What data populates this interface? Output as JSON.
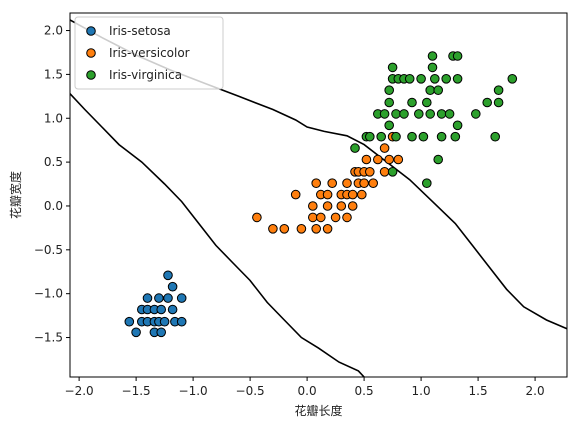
{
  "chart_data": {
    "type": "scatter",
    "xlabel": "花瓣长度",
    "ylabel": "花瓣宽度",
    "xlim": [
      -2.08,
      2.28
    ],
    "ylim": [
      -1.95,
      2.2
    ],
    "xticks": [
      -2.0,
      -1.5,
      -1.0,
      -0.5,
      0.0,
      0.5,
      1.0,
      1.5,
      2.0
    ],
    "yticks": [
      -1.5,
      -1.0,
      -0.5,
      0.0,
      0.5,
      1.0,
      1.5,
      2.0
    ],
    "xtick_labels": [
      "−2.0",
      "−1.5",
      "−1.0",
      "−0.5",
      "0.0",
      "0.5",
      "1.0",
      "1.5",
      "2.0"
    ],
    "ytick_labels": [
      "−1.5",
      "−1.0",
      "−0.5",
      "0.0",
      "0.5",
      "1.0",
      "1.5",
      "2.0"
    ],
    "legend_position": "top-left",
    "grid": false,
    "series": [
      {
        "name": "Iris-setosa",
        "color": "#1f77b4",
        "points": [
          [
            -1.56,
            -1.32
          ],
          [
            -1.5,
            -1.44
          ],
          [
            -1.45,
            -1.32
          ],
          [
            -1.45,
            -1.18
          ],
          [
            -1.4,
            -1.32
          ],
          [
            -1.4,
            -1.18
          ],
          [
            -1.4,
            -1.05
          ],
          [
            -1.34,
            -1.32
          ],
          [
            -1.34,
            -1.18
          ],
          [
            -1.34,
            -1.44
          ],
          [
            -1.3,
            -1.32
          ],
          [
            -1.3,
            -1.05
          ],
          [
            -1.28,
            -1.44
          ],
          [
            -1.28,
            -1.18
          ],
          [
            -1.25,
            -1.32
          ],
          [
            -1.22,
            -1.05
          ],
          [
            -1.22,
            -0.79
          ],
          [
            -1.18,
            -0.92
          ],
          [
            -1.18,
            -1.18
          ],
          [
            -1.16,
            -1.32
          ],
          [
            -1.1,
            -1.05
          ],
          [
            -1.1,
            -1.32
          ]
        ]
      },
      {
        "name": "Iris-versicolor",
        "color": "#ff7f0e",
        "points": [
          [
            -0.44,
            -0.13
          ],
          [
            -0.3,
            -0.26
          ],
          [
            -0.2,
            -0.26
          ],
          [
            -0.1,
            0.13
          ],
          [
            -0.05,
            -0.26
          ],
          [
            0.05,
            -0.13
          ],
          [
            0.05,
            0.0
          ],
          [
            0.08,
            0.26
          ],
          [
            0.08,
            -0.26
          ],
          [
            0.12,
            0.13
          ],
          [
            0.12,
            -0.13
          ],
          [
            0.18,
            0.0
          ],
          [
            0.18,
            0.13
          ],
          [
            0.18,
            -0.26
          ],
          [
            0.22,
            0.26
          ],
          [
            0.25,
            -0.13
          ],
          [
            0.3,
            0.13
          ],
          [
            0.3,
            0.0
          ],
          [
            0.35,
            0.13
          ],
          [
            0.35,
            0.26
          ],
          [
            0.35,
            -0.13
          ],
          [
            0.4,
            0.0
          ],
          [
            0.4,
            0.13
          ],
          [
            0.42,
            0.39
          ],
          [
            0.45,
            0.26
          ],
          [
            0.45,
            0.39
          ],
          [
            0.48,
            0.13
          ],
          [
            0.5,
            0.26
          ],
          [
            0.5,
            0.39
          ],
          [
            0.52,
            0.53
          ],
          [
            0.55,
            0.39
          ],
          [
            0.58,
            0.26
          ],
          [
            0.62,
            0.53
          ],
          [
            0.68,
            0.66
          ],
          [
            0.68,
            0.39
          ],
          [
            0.72,
            0.53
          ],
          [
            0.75,
            0.79
          ],
          [
            0.8,
            0.53
          ]
        ]
      },
      {
        "name": "Iris-virginica",
        "color": "#2ca02c",
        "points": [
          [
            0.42,
            0.66
          ],
          [
            0.52,
            0.79
          ],
          [
            0.55,
            0.79
          ],
          [
            0.62,
            1.05
          ],
          [
            0.65,
            0.79
          ],
          [
            0.68,
            1.05
          ],
          [
            0.72,
            0.92
          ],
          [
            0.72,
            1.18
          ],
          [
            0.72,
            1.32
          ],
          [
            0.75,
            0.39
          ],
          [
            0.75,
            1.45
          ],
          [
            0.75,
            1.58
          ],
          [
            0.78,
            0.79
          ],
          [
            0.78,
            1.05
          ],
          [
            0.8,
            1.45
          ],
          [
            0.85,
            1.05
          ],
          [
            0.85,
            1.45
          ],
          [
            0.9,
            1.45
          ],
          [
            0.92,
            0.79
          ],
          [
            0.92,
            1.18
          ],
          [
            0.98,
            1.05
          ],
          [
            1.0,
            1.45
          ],
          [
            1.02,
            0.79
          ],
          [
            1.05,
            1.18
          ],
          [
            1.05,
            0.26
          ],
          [
            1.08,
            1.32
          ],
          [
            1.08,
            1.05
          ],
          [
            1.1,
            1.58
          ],
          [
            1.1,
            1.71
          ],
          [
            1.12,
            1.45
          ],
          [
            1.15,
            0.53
          ],
          [
            1.15,
            1.32
          ],
          [
            1.18,
            1.05
          ],
          [
            1.18,
            0.79
          ],
          [
            1.22,
            1.45
          ],
          [
            1.25,
            1.05
          ],
          [
            1.28,
            1.71
          ],
          [
            1.3,
            0.79
          ],
          [
            1.32,
            1.71
          ],
          [
            1.32,
            0.92
          ],
          [
            1.32,
            1.45
          ],
          [
            1.48,
            1.05
          ],
          [
            1.58,
            1.18
          ],
          [
            1.65,
            0.79
          ],
          [
            1.68,
            1.32
          ],
          [
            1.68,
            1.18
          ],
          [
            1.8,
            1.45
          ]
        ]
      }
    ],
    "decision_boundaries": [
      {
        "color": "#000000",
        "points": [
          [
            -2.08,
            1.28
          ],
          [
            -1.95,
            1.1
          ],
          [
            -1.8,
            0.9
          ],
          [
            -1.65,
            0.7
          ],
          [
            -1.45,
            0.5
          ],
          [
            -1.25,
            0.25
          ],
          [
            -1.1,
            0.05
          ],
          [
            -0.95,
            -0.2
          ],
          [
            -0.8,
            -0.45
          ],
          [
            -0.65,
            -0.65
          ],
          [
            -0.5,
            -0.85
          ],
          [
            -0.35,
            -1.1
          ],
          [
            -0.2,
            -1.3
          ],
          [
            -0.05,
            -1.5
          ],
          [
            0.1,
            -1.62
          ],
          [
            0.28,
            -1.78
          ],
          [
            0.45,
            -1.88
          ],
          [
            0.5,
            -1.95
          ]
        ]
      },
      {
        "color": "#000000",
        "points": [
          [
            -2.08,
            2.12
          ],
          [
            -1.8,
            1.92
          ],
          [
            -1.5,
            1.72
          ],
          [
            -1.2,
            1.55
          ],
          [
            -0.9,
            1.4
          ],
          [
            -0.6,
            1.25
          ],
          [
            -0.3,
            1.1
          ],
          [
            -0.1,
            0.98
          ],
          [
            0.0,
            0.9
          ],
          [
            0.15,
            0.85
          ],
          [
            0.35,
            0.8
          ],
          [
            0.5,
            0.7
          ],
          [
            0.7,
            0.5
          ],
          [
            0.9,
            0.3
          ],
          [
            1.1,
            0.05
          ],
          [
            1.3,
            -0.2
          ],
          [
            1.45,
            -0.45
          ],
          [
            1.6,
            -0.7
          ],
          [
            1.75,
            -0.95
          ],
          [
            1.9,
            -1.15
          ],
          [
            2.1,
            -1.3
          ],
          [
            2.28,
            -1.4
          ]
        ]
      }
    ]
  }
}
